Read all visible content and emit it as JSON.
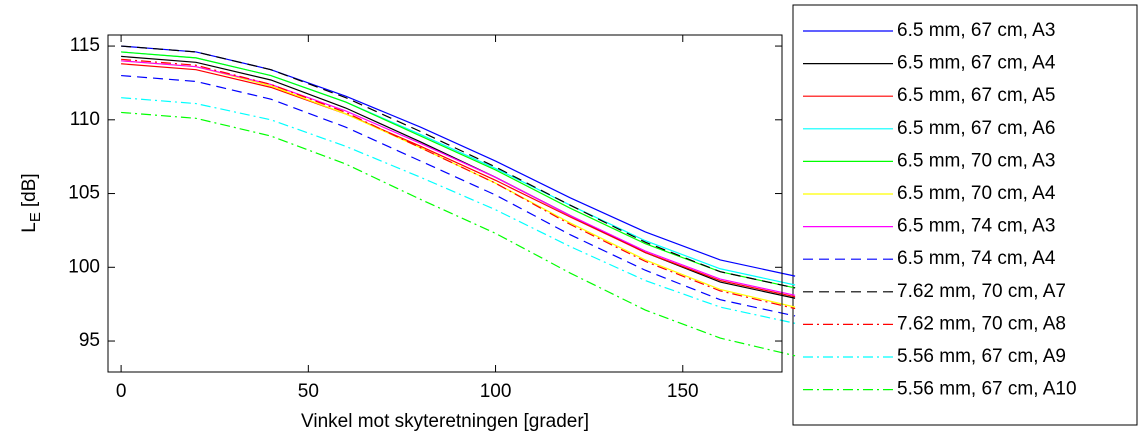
{
  "chart_data": {
    "type": "line",
    "xlabel": "Vinkel mot skyteretningen [grader]",
    "ylabel": {
      "main": "L",
      "sub": "E",
      "unit": "[dB]"
    },
    "x": [
      0,
      20,
      40,
      60,
      80,
      100,
      120,
      140,
      160,
      180
    ],
    "xlim": [
      -3.5,
      176.5
    ],
    "xticks": [
      0,
      50,
      100,
      150
    ],
    "ylim": [
      92.9,
      115.75
    ],
    "yticks": [
      95,
      100,
      105,
      110,
      115
    ],
    "legend": "outside-right",
    "series": [
      {
        "name": "6.5 mm, 67 cm, A3",
        "color": "#0000ff",
        "dash": "solid",
        "values": [
          115.0,
          114.6,
          113.4,
          111.6,
          109.5,
          107.2,
          104.7,
          102.4,
          100.5,
          99.4
        ]
      },
      {
        "name": "6.5 mm, 67 cm, A4",
        "color": "#000000",
        "dash": "solid",
        "values": [
          114.3,
          113.9,
          112.7,
          110.8,
          108.5,
          106.1,
          103.5,
          101.0,
          99.0,
          97.9
        ]
      },
      {
        "name": "6.5 mm, 67 cm, A5",
        "color": "#ff0000",
        "dash": "solid",
        "values": [
          113.8,
          113.4,
          112.2,
          110.4,
          108.2,
          105.9,
          103.4,
          101.0,
          99.1,
          98.0
        ]
      },
      {
        "name": "6.5 mm, 67 cm, A6",
        "color": "#00ffff",
        "dash": "solid",
        "values": [
          114.6,
          114.2,
          113.0,
          111.2,
          109.0,
          106.7,
          104.2,
          101.8,
          99.9,
          98.8
        ]
      },
      {
        "name": "6.5 mm, 70 cm, A3",
        "color": "#00ff00",
        "dash": "solid",
        "values": [
          114.6,
          114.2,
          113.0,
          111.2,
          108.9,
          106.6,
          104.0,
          101.6,
          99.7,
          98.6
        ]
      },
      {
        "name": "6.5 mm, 70 cm, A4",
        "color": "#ffff00",
        "dash": "solid",
        "values": [
          114.0,
          113.6,
          112.3,
          110.4,
          108.1,
          105.7,
          103.0,
          100.5,
          98.5,
          97.3
        ]
      },
      {
        "name": "6.5 mm, 74 cm, A3",
        "color": "#ff00ff",
        "dash": "solid",
        "values": [
          114.0,
          113.6,
          112.4,
          110.6,
          108.4,
          106.1,
          103.5,
          101.1,
          99.2,
          98.1
        ]
      },
      {
        "name": "6.5 mm, 74 cm, A4",
        "color": "#0000ff",
        "dash": "dashed",
        "values": [
          113.0,
          112.6,
          111.4,
          109.5,
          107.2,
          104.9,
          102.2,
          99.8,
          97.8,
          96.7
        ]
      },
      {
        "name": "7.62 mm, 70 cm, A7",
        "color": "#000000",
        "dash": "dashed",
        "values": [
          115.0,
          114.6,
          113.4,
          111.5,
          109.2,
          106.8,
          104.2,
          101.7,
          99.7,
          98.6
        ]
      },
      {
        "name": "7.62 mm, 70 cm, A8",
        "color": "#ff0000",
        "dash": "dashdot",
        "values": [
          114.1,
          113.7,
          112.4,
          110.5,
          108.1,
          105.7,
          102.9,
          100.4,
          98.4,
          97.2
        ]
      },
      {
        "name": "5.56 mm, 67 cm, A9",
        "color": "#00ffff",
        "dash": "dashdot",
        "values": [
          111.5,
          111.1,
          110.0,
          108.2,
          106.1,
          103.9,
          101.4,
          99.1,
          97.3,
          96.2
        ]
      },
      {
        "name": "5.56 mm, 67 cm, A10",
        "color": "#00ff00",
        "dash": "dashdot",
        "values": [
          110.5,
          110.1,
          108.9,
          107.0,
          104.6,
          102.3,
          99.6,
          97.1,
          95.2,
          94.0
        ]
      }
    ]
  }
}
